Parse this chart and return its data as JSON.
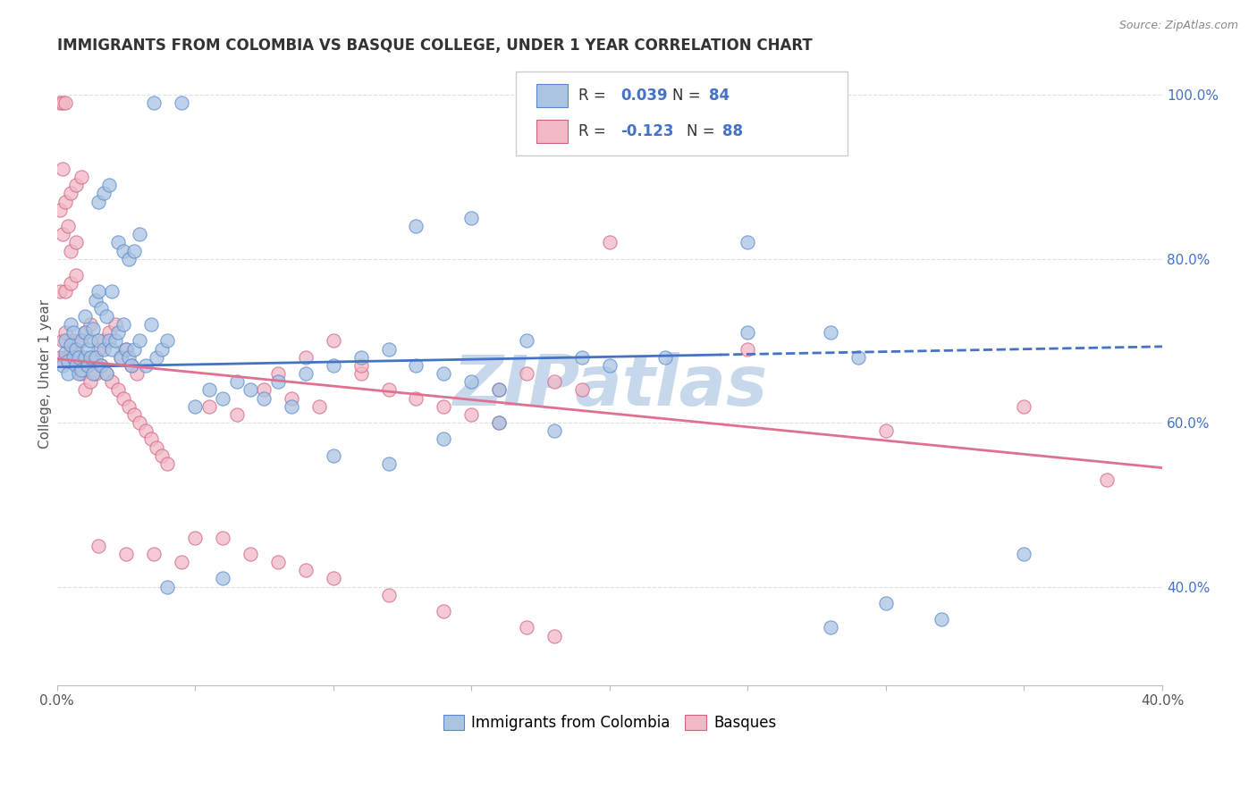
{
  "title": "IMMIGRANTS FROM COLOMBIA VS BASQUE COLLEGE, UNDER 1 YEAR CORRELATION CHART",
  "source": "Source: ZipAtlas.com",
  "ylabel": "College, Under 1 year",
  "xlim": [
    0.0,
    0.4
  ],
  "ylim": [
    0.28,
    1.04
  ],
  "yticks_right": [
    0.4,
    0.6,
    0.8,
    1.0
  ],
  "ytick_right_labels": [
    "40.0%",
    "60.0%",
    "80.0%",
    "100.0%"
  ],
  "blue_color": "#aac4e2",
  "pink_color": "#f2b8c6",
  "blue_line_color": "#4472c4",
  "pink_line_color": "#e07090",
  "blue_edge_color": "#5588cc",
  "pink_edge_color": "#d06080",
  "legend_label_blue": "Immigrants from Colombia",
  "legend_label_pink": "Basques",
  "blue_scatter": [
    [
      0.002,
      0.67
    ],
    [
      0.003,
      0.685
    ],
    [
      0.003,
      0.7
    ],
    [
      0.004,
      0.66
    ],
    [
      0.004,
      0.675
    ],
    [
      0.005,
      0.695
    ],
    [
      0.005,
      0.72
    ],
    [
      0.006,
      0.68
    ],
    [
      0.006,
      0.71
    ],
    [
      0.007,
      0.67
    ],
    [
      0.007,
      0.69
    ],
    [
      0.008,
      0.66
    ],
    [
      0.008,
      0.68
    ],
    [
      0.009,
      0.7
    ],
    [
      0.009,
      0.665
    ],
    [
      0.01,
      0.68
    ],
    [
      0.01,
      0.71
    ],
    [
      0.01,
      0.73
    ],
    [
      0.011,
      0.69
    ],
    [
      0.011,
      0.67
    ],
    [
      0.012,
      0.68
    ],
    [
      0.012,
      0.7
    ],
    [
      0.013,
      0.715
    ],
    [
      0.013,
      0.66
    ],
    [
      0.014,
      0.68
    ],
    [
      0.014,
      0.75
    ],
    [
      0.015,
      0.7
    ],
    [
      0.015,
      0.76
    ],
    [
      0.015,
      0.87
    ],
    [
      0.016,
      0.67
    ],
    [
      0.016,
      0.74
    ],
    [
      0.017,
      0.69
    ],
    [
      0.017,
      0.88
    ],
    [
      0.018,
      0.66
    ],
    [
      0.018,
      0.73
    ],
    [
      0.019,
      0.7
    ],
    [
      0.019,
      0.89
    ],
    [
      0.02,
      0.69
    ],
    [
      0.02,
      0.76
    ],
    [
      0.021,
      0.7
    ],
    [
      0.022,
      0.71
    ],
    [
      0.022,
      0.82
    ],
    [
      0.023,
      0.68
    ],
    [
      0.024,
      0.72
    ],
    [
      0.024,
      0.81
    ],
    [
      0.025,
      0.69
    ],
    [
      0.026,
      0.68
    ],
    [
      0.026,
      0.8
    ],
    [
      0.027,
      0.67
    ],
    [
      0.028,
      0.69
    ],
    [
      0.028,
      0.81
    ],
    [
      0.03,
      0.7
    ],
    [
      0.03,
      0.83
    ],
    [
      0.032,
      0.67
    ],
    [
      0.034,
      0.72
    ],
    [
      0.035,
      0.99
    ],
    [
      0.036,
      0.68
    ],
    [
      0.038,
      0.69
    ],
    [
      0.04,
      0.7
    ],
    [
      0.04,
      0.4
    ],
    [
      0.045,
      0.99
    ],
    [
      0.05,
      0.62
    ],
    [
      0.055,
      0.64
    ],
    [
      0.06,
      0.63
    ],
    [
      0.06,
      0.41
    ],
    [
      0.065,
      0.65
    ],
    [
      0.07,
      0.64
    ],
    [
      0.075,
      0.63
    ],
    [
      0.08,
      0.65
    ],
    [
      0.085,
      0.62
    ],
    [
      0.09,
      0.66
    ],
    [
      0.1,
      0.56
    ],
    [
      0.1,
      0.67
    ],
    [
      0.11,
      0.68
    ],
    [
      0.12,
      0.55
    ],
    [
      0.12,
      0.69
    ],
    [
      0.13,
      0.67
    ],
    [
      0.13,
      0.84
    ],
    [
      0.14,
      0.58
    ],
    [
      0.14,
      0.66
    ],
    [
      0.15,
      0.65
    ],
    [
      0.15,
      0.85
    ],
    [
      0.16,
      0.6
    ],
    [
      0.16,
      0.64
    ],
    [
      0.17,
      0.7
    ],
    [
      0.18,
      0.59
    ],
    [
      0.19,
      0.68
    ],
    [
      0.2,
      0.67
    ],
    [
      0.22,
      0.68
    ],
    [
      0.25,
      0.71
    ],
    [
      0.25,
      0.82
    ],
    [
      0.28,
      0.35
    ],
    [
      0.28,
      0.71
    ],
    [
      0.29,
      0.68
    ],
    [
      0.3,
      0.38
    ],
    [
      0.32,
      0.36
    ],
    [
      0.35,
      0.44
    ]
  ],
  "pink_scatter": [
    [
      0.001,
      0.68
    ],
    [
      0.001,
      0.76
    ],
    [
      0.001,
      0.86
    ],
    [
      0.001,
      0.99
    ],
    [
      0.002,
      0.7
    ],
    [
      0.002,
      0.83
    ],
    [
      0.002,
      0.91
    ],
    [
      0.002,
      0.99
    ],
    [
      0.003,
      0.68
    ],
    [
      0.003,
      0.71
    ],
    [
      0.003,
      0.76
    ],
    [
      0.003,
      0.87
    ],
    [
      0.003,
      0.99
    ],
    [
      0.004,
      0.68
    ],
    [
      0.004,
      0.84
    ],
    [
      0.005,
      0.69
    ],
    [
      0.005,
      0.77
    ],
    [
      0.005,
      0.81
    ],
    [
      0.005,
      0.88
    ],
    [
      0.006,
      0.7
    ],
    [
      0.006,
      0.69
    ],
    [
      0.007,
      0.68
    ],
    [
      0.007,
      0.78
    ],
    [
      0.007,
      0.82
    ],
    [
      0.007,
      0.89
    ],
    [
      0.008,
      0.7
    ],
    [
      0.009,
      0.66
    ],
    [
      0.009,
      0.9
    ],
    [
      0.01,
      0.64
    ],
    [
      0.01,
      0.71
    ],
    [
      0.011,
      0.67
    ],
    [
      0.012,
      0.65
    ],
    [
      0.012,
      0.72
    ],
    [
      0.013,
      0.68
    ],
    [
      0.014,
      0.66
    ],
    [
      0.015,
      0.45
    ],
    [
      0.015,
      0.69
    ],
    [
      0.016,
      0.67
    ],
    [
      0.017,
      0.7
    ],
    [
      0.018,
      0.66
    ],
    [
      0.019,
      0.71
    ],
    [
      0.02,
      0.65
    ],
    [
      0.021,
      0.72
    ],
    [
      0.022,
      0.64
    ],
    [
      0.023,
      0.68
    ],
    [
      0.024,
      0.63
    ],
    [
      0.025,
      0.44
    ],
    [
      0.025,
      0.69
    ],
    [
      0.026,
      0.62
    ],
    [
      0.027,
      0.67
    ],
    [
      0.028,
      0.61
    ],
    [
      0.029,
      0.66
    ],
    [
      0.03,
      0.6
    ],
    [
      0.032,
      0.59
    ],
    [
      0.034,
      0.58
    ],
    [
      0.035,
      0.44
    ],
    [
      0.036,
      0.57
    ],
    [
      0.038,
      0.56
    ],
    [
      0.04,
      0.55
    ],
    [
      0.045,
      0.43
    ],
    [
      0.05,
      0.46
    ],
    [
      0.055,
      0.62
    ],
    [
      0.06,
      0.46
    ],
    [
      0.065,
      0.61
    ],
    [
      0.07,
      0.44
    ],
    [
      0.075,
      0.64
    ],
    [
      0.08,
      0.43
    ],
    [
      0.08,
      0.66
    ],
    [
      0.085,
      0.63
    ],
    [
      0.09,
      0.42
    ],
    [
      0.09,
      0.68
    ],
    [
      0.095,
      0.62
    ],
    [
      0.1,
      0.41
    ],
    [
      0.1,
      0.7
    ],
    [
      0.11,
      0.66
    ],
    [
      0.11,
      0.67
    ],
    [
      0.12,
      0.39
    ],
    [
      0.12,
      0.64
    ],
    [
      0.13,
      0.63
    ],
    [
      0.14,
      0.37
    ],
    [
      0.14,
      0.62
    ],
    [
      0.15,
      0.61
    ],
    [
      0.16,
      0.6
    ],
    [
      0.16,
      0.64
    ],
    [
      0.17,
      0.35
    ],
    [
      0.17,
      0.66
    ],
    [
      0.18,
      0.34
    ],
    [
      0.18,
      0.65
    ],
    [
      0.19,
      0.64
    ],
    [
      0.2,
      0.82
    ],
    [
      0.25,
      0.69
    ],
    [
      0.3,
      0.59
    ],
    [
      0.35,
      0.62
    ],
    [
      0.38,
      0.53
    ]
  ],
  "watermark": "ZIPatlas",
  "watermark_color": "#c8d8ec",
  "background_color": "#ffffff",
  "grid_color": "#e0e0e0",
  "grid_style": "--"
}
